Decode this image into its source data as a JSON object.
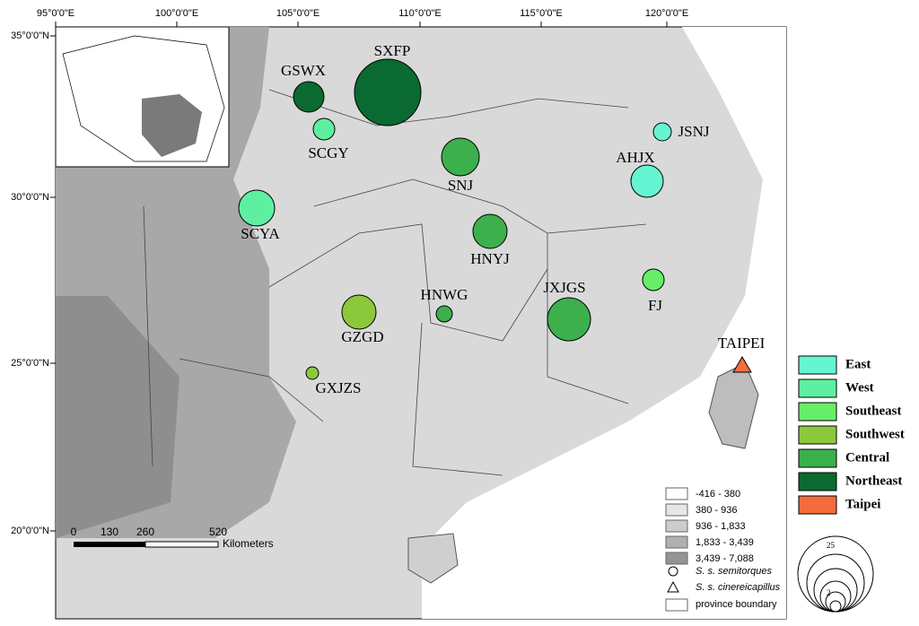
{
  "map": {
    "lon_labels": [
      "95°0'0\"E",
      "100°0'0\"E",
      "105°0'0\"E",
      "110°0'0\"E",
      "115°0'0\"E",
      "120°0'0\"E"
    ],
    "lat_labels": [
      "35°0'0\"N",
      "30°0'0\"N",
      "25°0'0\"N",
      "20°0'0\"N"
    ],
    "groups": [
      {
        "name": "East",
        "color": "#66f5d2",
        "sites": [
          "JSNJ",
          "AHJX"
        ]
      },
      {
        "name": "West",
        "color": "#5ef0a0",
        "sites": [
          "SCGY",
          "SCYA"
        ]
      },
      {
        "name": "Southeast",
        "color": "#66ee66",
        "sites": [
          "FJ"
        ]
      },
      {
        "name": "Southwest",
        "color": "#8cc83c",
        "sites": [
          "GZGD",
          "GXJZS"
        ]
      },
      {
        "name": "Central",
        "color": "#3cb04c",
        "sites": [
          "SNJ",
          "HNYJ",
          "HNWG",
          "JXJGS"
        ]
      },
      {
        "name": "Northeast",
        "color": "#0a6a32",
        "sites": [
          "GSWX",
          "SXFP"
        ]
      },
      {
        "name": "Taipei",
        "color": "#f26c3c",
        "sites": [
          "TAIPEI"
        ]
      }
    ],
    "elevation_legend": [
      "-416 - 380",
      "380 - 936",
      "936 - 1,833",
      "1,833 - 3,439",
      "3,439 - 7,088"
    ],
    "scale_bar": {
      "ticks": [
        "0",
        "130",
        "260",
        "520"
      ],
      "unit": "Kilometers"
    },
    "symbol_legend": [
      "S. s. semitorques",
      "S. s. cinereicapillus",
      "province boundary"
    ],
    "size_legend": [
      "25",
      "2"
    ]
  }
}
